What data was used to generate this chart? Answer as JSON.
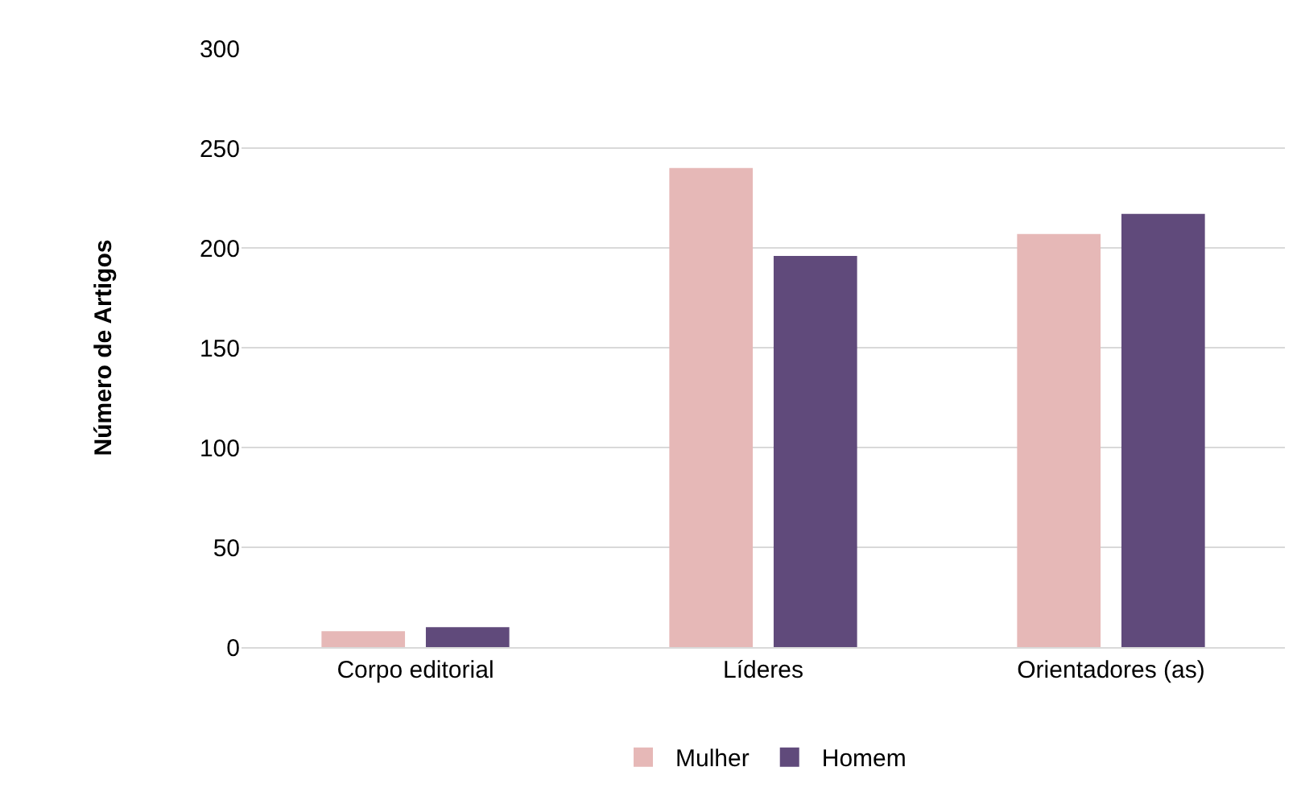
{
  "chart_data": {
    "type": "bar",
    "ylabel": "Número de Artigos",
    "categories": [
      "Corpo editorial",
      "Líderes",
      "Orientadores (as)"
    ],
    "series": [
      {
        "name": "Mulher",
        "color": "#e6b8b7",
        "values": [
          8,
          240,
          207
        ]
      },
      {
        "name": "Homem",
        "color": "#604a7b",
        "values": [
          10,
          196,
          217
        ]
      }
    ],
    "ylim": [
      0,
      300
    ],
    "yticks": [
      0,
      50,
      100,
      150,
      200,
      250,
      300
    ],
    "grid": "y",
    "legend": "bottom"
  }
}
